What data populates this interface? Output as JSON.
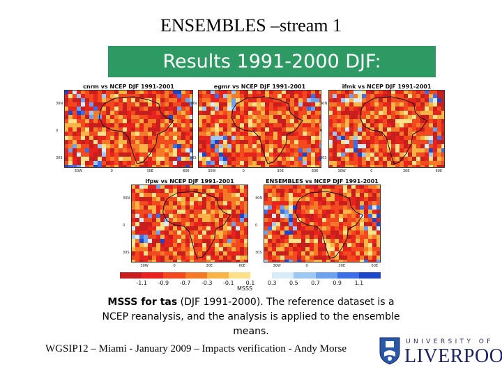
{
  "slide": {
    "title": "ENSEMBLES –stream 1",
    "banner": "Results 1991-2000 DJF:"
  },
  "panels": [
    {
      "title": "cnrm vs NCEP DJF 1991-2001",
      "yticks": [
        "30N",
        "0",
        "30S"
      ],
      "xticks": [
        "30W",
        "0",
        "30E",
        "60E"
      ]
    },
    {
      "title": "egmr vs NCEP DJF 1991-2001",
      "yticks": [
        "30N",
        "0",
        "30S"
      ],
      "xticks": [
        "30W",
        "0",
        "30E",
        "60E"
      ]
    },
    {
      "title": "ifmk vs NCEP DJF 1991-2001",
      "yticks": [
        "30N",
        "0",
        "30S"
      ],
      "xticks": [
        "30W",
        "0",
        "30E",
        "60E"
      ]
    },
    {
      "title": "ifpw vs NCEP DJF 1991-2001",
      "yticks": [
        "30N",
        "0",
        "30S"
      ],
      "xticks": [
        "30W",
        "0",
        "30E",
        "60E"
      ]
    },
    {
      "title": "ENSEMBLES vs NCEP DJF 1991-2001",
      "yticks": [
        "30N",
        "0",
        "30S"
      ],
      "xticks": [
        "30W",
        "0",
        "30E",
        "60E"
      ]
    }
  ],
  "colorbar": {
    "labels": [
      "-1.1",
      "-0.9",
      "-0.7",
      "-0.3",
      "-0.1",
      "0.1",
      "0.3",
      "0.5",
      "0.7",
      "0.9",
      "1.1"
    ],
    "colors": [
      "#c81e1e",
      "#e8231e",
      "#f24a1e",
      "#f57a28",
      "#fab446",
      "#fde08a",
      "#ffffff",
      "#d6ecf8",
      "#9cc8f2",
      "#6ea2ee",
      "#3c6ee6",
      "#1e46c8"
    ],
    "title": "MSSS"
  },
  "caption": {
    "bold": "MSSS for tas",
    "text": " (DJF 1991-2000). The reference dataset is a NCEP reanalysis, and the analysis is applied to the ensemble means."
  },
  "footer": "WGSIP12 – Miami - January 2009 – Impacts verification - Andy Morse",
  "logo": {
    "university": "UNIVERSITY OF",
    "name": "LIVERPOOL",
    "colors": {
      "navy": "#1c2466",
      "blue": "#2a58a8"
    }
  }
}
